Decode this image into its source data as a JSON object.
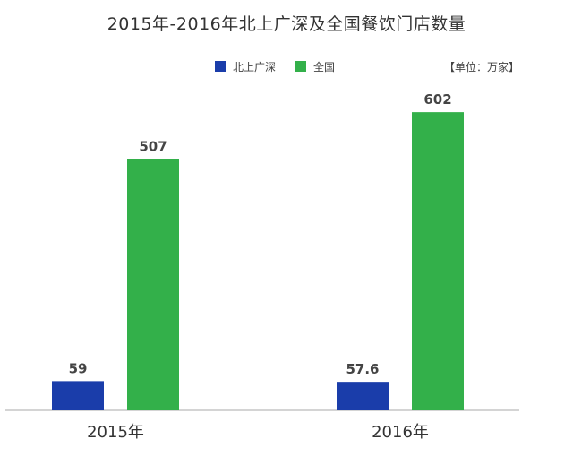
{
  "chart_data": {
    "type": "bar",
    "title": "2015年-2016年北上广深及全国餐饮门店数量",
    "unit_label": "【单位：万家】",
    "categories": [
      "2015年",
      "2016年"
    ],
    "series": [
      {
        "name": "北上广深",
        "values": [
          59,
          57.6
        ],
        "color": "#1a3daa",
        "labels": [
          "59",
          "57.6"
        ]
      },
      {
        "name": "全国",
        "values": [
          507,
          602
        ],
        "color": "#33b04a",
        "labels": [
          "507",
          "602"
        ]
      }
    ],
    "ylim": [
      0,
      680
    ],
    "legend_position": "top",
    "grid": false
  }
}
